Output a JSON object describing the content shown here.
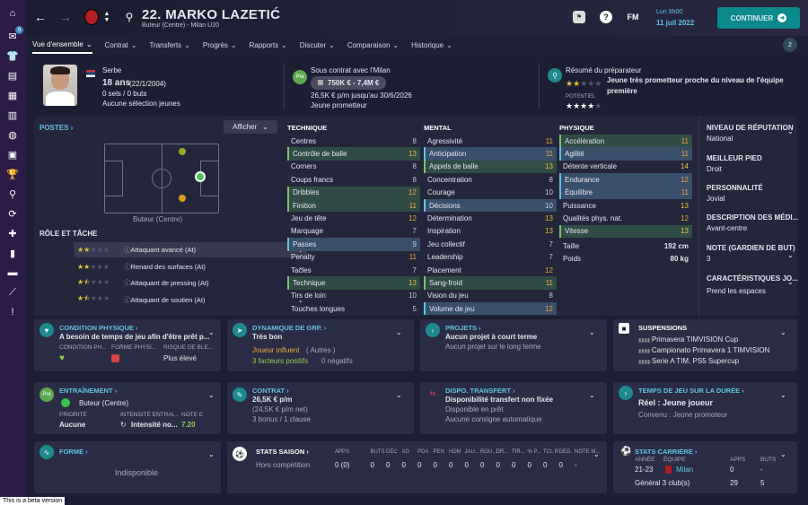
{
  "sidebar": {
    "icons": [
      "home-icon",
      "inbox-icon",
      "squad-icon",
      "tactics-icon",
      "staff-icon",
      "data-icon",
      "club-icon",
      "calendar-icon",
      "competitions-icon",
      "scouting-icon",
      "transfers-icon",
      "training-icon",
      "finances-icon",
      "dev-centre-icon",
      "report-icon",
      "info-icon"
    ],
    "inbox_count": "9"
  },
  "header": {
    "name": "22. MARKO LAZETIĆ",
    "sub": "Buteur (Centre) - Milan U20",
    "time": "Lun 9h00",
    "date": "11 juil 2022",
    "fm": "FM",
    "continue": "CONTINUER",
    "notif": "2"
  },
  "nav": [
    "Vue d'ensemble",
    "Contrat",
    "Transferts",
    "Progrès",
    "Rapports",
    "Discuter",
    "Comparaison",
    "Historique"
  ],
  "profile": {
    "nationality": "Serbe",
    "age": "18 ans",
    "dob": "(22/1/2004)",
    "caps": "0 sels / 0 buts",
    "youth": "Aucune sélection jeunes",
    "contract_title": "Sous contrat avec l'Milan",
    "value": "750K € - 7,4M €",
    "wage": "26,5K € p/m jusqu'au 30/6/2026",
    "contract_type": "Jeune prometteur",
    "pre": "Pre",
    "coach_title": "Résumé du préparateur",
    "coach_text1": "Jeune très prometteur proche du niveau de l'équipe",
    "coach_text2": "première",
    "potential_label": "POTENTIEL"
  },
  "positions": {
    "title": "POSTES",
    "show": "Afficher",
    "pos_label": "Buteur (Centre)"
  },
  "roles": {
    "title": "RÔLE ET TÂCHE",
    "items": [
      {
        "name": "Attaquant avancé (At)",
        "stars": 2
      },
      {
        "name": "Renard des surfaces (At)",
        "stars": 2
      },
      {
        "name": "Attaquant de pressing (At)",
        "stars": 1.5
      },
      {
        "name": "Attaquant de soutien (At)",
        "stars": 1.5
      }
    ]
  },
  "technique": {
    "title": "TECHNIQUE",
    "rows": [
      [
        "Centres",
        "8",
        ""
      ],
      [
        "Contrôle de balle",
        "13",
        "g"
      ],
      [
        "Corners",
        "8",
        ""
      ],
      [
        "Coups francs",
        "8",
        ""
      ],
      [
        "Dribbles",
        "12",
        "g"
      ],
      [
        "Finition",
        "11",
        "g"
      ],
      [
        "Jeu de tête",
        "12",
        ""
      ],
      [
        "Marquage",
        "7",
        ""
      ],
      [
        "Passes",
        "9",
        "h"
      ],
      [
        "Penalty",
        "11",
        ""
      ],
      [
        "Tacles",
        "7",
        ""
      ],
      [
        "Technique",
        "13",
        "g"
      ],
      [
        "Tirs de loin",
        "10",
        ""
      ],
      [
        "Touches longues",
        "5",
        ""
      ]
    ]
  },
  "mental": {
    "title": "MENTAL",
    "rows": [
      [
        "Agressivité",
        "11",
        ""
      ],
      [
        "Anticipation",
        "11",
        "h"
      ],
      [
        "Appels de balle",
        "13",
        "g"
      ],
      [
        "Concentration",
        "8",
        ""
      ],
      [
        "Courage",
        "10",
        ""
      ],
      [
        "Décisions",
        "10",
        "h"
      ],
      [
        "Détermination",
        "13",
        ""
      ],
      [
        "Inspiration",
        "13",
        ""
      ],
      [
        "Jeu collectif",
        "7",
        ""
      ],
      [
        "Leadership",
        "7",
        ""
      ],
      [
        "Placement",
        "12",
        ""
      ],
      [
        "Sang-froid",
        "11",
        "g"
      ],
      [
        "Vision du jeu",
        "8",
        ""
      ],
      [
        "Volume de jeu",
        "12",
        "h"
      ]
    ]
  },
  "physique": {
    "title": "PHYSIQUE",
    "rows": [
      [
        "Accélération",
        "11",
        "g"
      ],
      [
        "Agilité",
        "11",
        "h"
      ],
      [
        "Détente verticale",
        "14",
        ""
      ],
      [
        "Endurance",
        "12",
        "h"
      ],
      [
        "Équilibre",
        "11",
        "h"
      ],
      [
        "Puissance",
        "13",
        ""
      ],
      [
        "Qualités phys. nat.",
        "12",
        ""
      ],
      [
        "Vitesse",
        "13",
        "g"
      ]
    ],
    "height_label": "Taille",
    "height": "192 cm",
    "weight_label": "Poids",
    "weight": "80 kg"
  },
  "info": {
    "rep_title": "NIVEAU DE RÉPUTATION",
    "rep": "National",
    "foot_title": "MEILLEUR PIED",
    "foot": "Droit",
    "pers_title": "PERSONNALITÉ",
    "pers": "Jovial",
    "desc_title": "DESCRIPTION DES MÉDI...",
    "desc": "Avant-centre",
    "gk_title": "NOTE (GARDIEN DE BUT)",
    "gk": "3",
    "char_title": "CARACTÉRISTIQUES JO...",
    "char": "Prend les espaces"
  },
  "cond": {
    "title": "CONDITION PHYSIQUE",
    "text": "A besoin de temps de jeu afin d'être prêt p...",
    "l1": "CONDITION PH...",
    "l2": "FORME PHYSI...",
    "l3": "RISQUE DE BLE...",
    "risk": "Plus élevé"
  },
  "dyn": {
    "title": "DYNAMIQUE DE GRP.",
    "text": "Très bon",
    "influence": "Joueur influent",
    "inf2": "( Autres )",
    "pos": "3 facteurs positifs",
    "neg": "0 négatifs"
  },
  "proj": {
    "title": "PROJETS",
    "text": "Aucun projet à court terme",
    "text2": "Aucun projet sur le long terme"
  },
  "susp": {
    "title": "SUSPENSIONS",
    "items": [
      "Primavera TIMVISION Cup",
      "Campionato Primavera 1 TIMVISION",
      "Serie A TIM, PS5 Supercup"
    ]
  },
  "train": {
    "title": "ENTRAÎNEMENT",
    "pos": "Buteur (Centre)",
    "l1": "PRIORITÉ",
    "v1": "Aucune",
    "l2": "INTENSITÉ ENTRAI...",
    "v2": "Intensité no...",
    "l3": "NOTE E",
    "v3": "7.20"
  },
  "contract": {
    "title": "CONTRAT",
    "wage": "26,5K € p/m",
    "wage2": "(24,5K € p/m net)",
    "bonus": "3 bonus / 1 clause"
  },
  "dispo": {
    "title": "DISPO. TRANSFERT",
    "text": "Disponibilité transfert non fixée",
    "l1": "Disponible en prêt",
    "l2": "Aucune consigne automatique"
  },
  "playtime": {
    "title": "TEMPS DE JEU SUR LA DURÉE",
    "text": "Réel : Jeune joueur",
    "sub": "Convenu : Jeune promoteur"
  },
  "form": {
    "title": "FORME",
    "text": "Indisponible"
  },
  "season": {
    "title": "STATS SAISON",
    "cols": [
      "APPS",
      "BUTS",
      "DÉC",
      "XG",
      "PDA",
      "PEN",
      "HDM",
      "JAU...",
      "ROU...",
      "DR...",
      "TIR...",
      "% P...",
      "TCL R",
      "DÉG.",
      "NOTE M..."
    ],
    "row_label": "Hors compétition",
    "row": [
      "0 (0)",
      "0",
      "0",
      "0",
      "0",
      "0",
      "0",
      "0",
      "0",
      "0",
      "0",
      "0",
      "0",
      "0",
      "-"
    ]
  },
  "career": {
    "title": "STATS CARRIÈRE",
    "h1": "ANNÉE",
    "h2": "ÉQUIPE",
    "h3": "APPS",
    "h4": "BUTS",
    "year": "21-23",
    "team": "Milan",
    "apps": "0",
    "goals": "-",
    "total": "Général 3 club(s)",
    "tapps": "29",
    "tgoals": "5"
  },
  "beta": "This is a beta version"
}
